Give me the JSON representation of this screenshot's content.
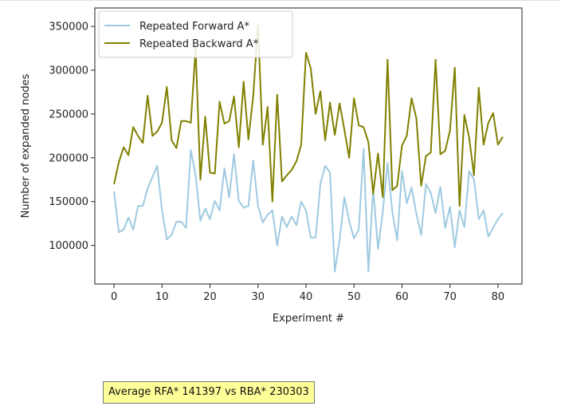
{
  "chart_data": {
    "type": "line",
    "title": "",
    "xlabel": "Experiment #",
    "ylabel": "Number of expanded nodes",
    "xlim": [
      -4,
      85
    ],
    "ylim": [
      56000,
      371000
    ],
    "xticks": [
      0,
      10,
      20,
      30,
      40,
      50,
      60,
      70,
      80
    ],
    "yticks": [
      100000,
      150000,
      200000,
      250000,
      300000,
      350000
    ],
    "legend_position": "upper-left",
    "grid": false,
    "series": [
      {
        "name": "Repeated Forward A*",
        "color": "#9ecae1",
        "values": [
          162000,
          115000,
          118000,
          132000,
          118000,
          145000,
          145000,
          165000,
          178000,
          191000,
          140000,
          107000,
          112000,
          127000,
          127000,
          120000,
          209000,
          180000,
          128000,
          142000,
          130000,
          151000,
          140000,
          188000,
          155000,
          204000,
          151000,
          143000,
          145000,
          197000,
          145000,
          126000,
          135000,
          140000,
          100000,
          133000,
          121000,
          133000,
          123000,
          150000,
          140000,
          109000,
          109000,
          170000,
          191000,
          183000,
          70000,
          106000,
          155000,
          128000,
          108000,
          118000,
          210000,
          70000,
          165000,
          96000,
          138000,
          194000,
          138000,
          106000,
          185000,
          148000,
          166000,
          136000,
          112000,
          170000,
          160000,
          137000,
          167000,
          120000,
          144000,
          98000,
          140000,
          121000,
          185000,
          175000,
          130000,
          140000,
          110000,
          120000,
          130000,
          137000
        ]
      },
      {
        "name": "Repeated Backward A*",
        "color": "#808000",
        "values": [
          170000,
          195000,
          212000,
          203000,
          235000,
          225000,
          217000,
          271000,
          225000,
          230000,
          240000,
          281000,
          220000,
          211000,
          242000,
          242000,
          240000,
          325000,
          175000,
          247000,
          183000,
          182000,
          264000,
          239000,
          242000,
          270000,
          212000,
          287000,
          221000,
          270000,
          352000,
          215000,
          258000,
          150000,
          272000,
          173000,
          180000,
          186000,
          196000,
          215000,
          320000,
          302000,
          250000,
          276000,
          220000,
          263000,
          226000,
          262000,
          232000,
          200000,
          268000,
          237000,
          235000,
          218000,
          159000,
          205000,
          155000,
          312000,
          163000,
          168000,
          214000,
          225000,
          268000,
          245000,
          168000,
          202000,
          206000,
          312000,
          204000,
          208000,
          231000,
          303000,
          145000,
          249000,
          223000,
          180000,
          280000,
          215000,
          240000,
          251000,
          215000,
          224000
        ]
      }
    ]
  },
  "caption": {
    "text": "Average RFA* 141397 vs RBA* 230303"
  }
}
